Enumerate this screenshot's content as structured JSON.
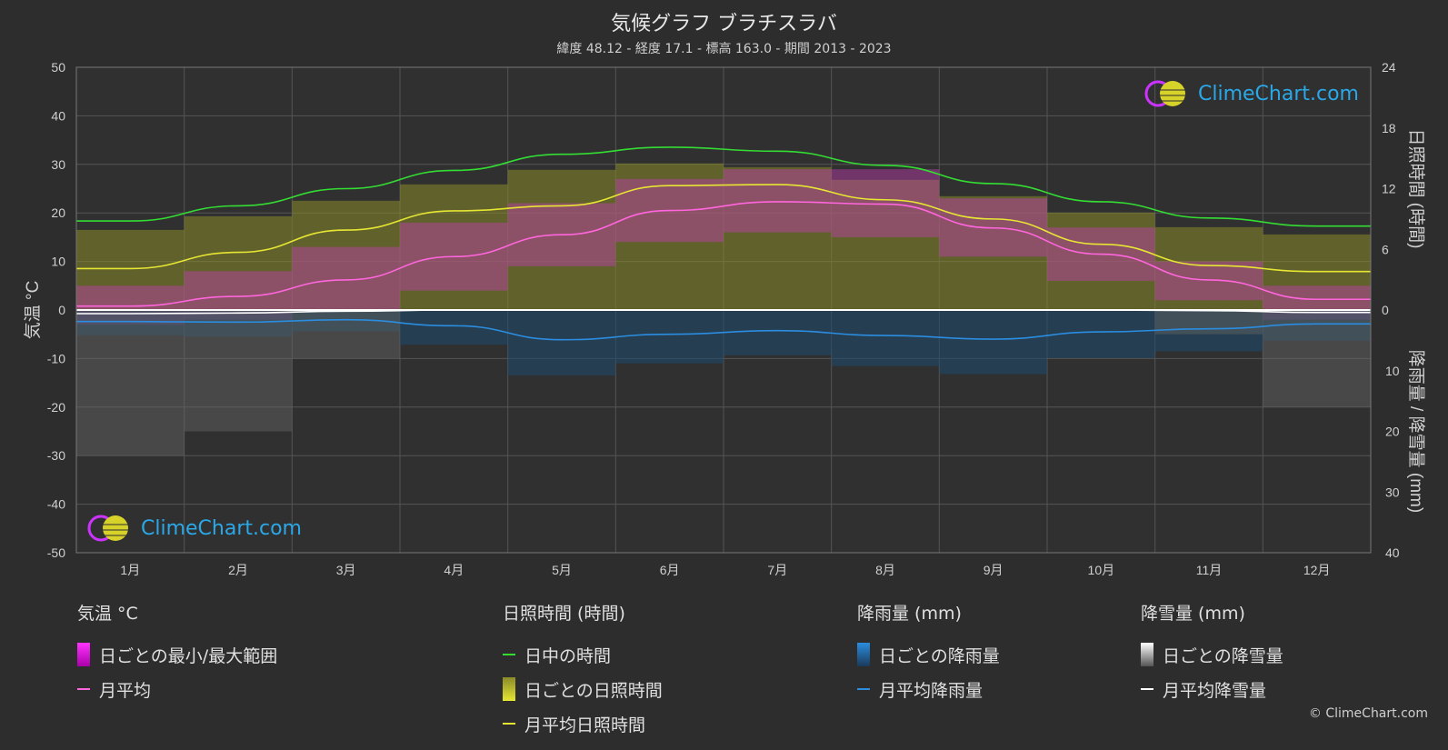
{
  "title": "気候グラフ ブラチスラバ",
  "subtitle": "緯度 48.12 - 経度 17.1 - 標高 163.0 - 期間 2013 - 2023",
  "axes": {
    "left_label": "気温 °C",
    "right_top_label": "日照時間 (時間)",
    "right_bottom_label": "降雨量 / 降雪量 (mm)",
    "left_ticks": [
      "50",
      "40",
      "30",
      "20",
      "10",
      "0",
      "-10",
      "-20",
      "-30",
      "-40",
      "-50"
    ],
    "right_top_ticks": [
      "24",
      "18",
      "12",
      "6",
      "0"
    ],
    "right_bottom_ticks": [
      "10",
      "20",
      "30",
      "40"
    ],
    "months": [
      "1月",
      "2月",
      "3月",
      "4月",
      "5月",
      "6月",
      "7月",
      "8月",
      "9月",
      "10月",
      "11月",
      "12月"
    ]
  },
  "chart_data": {
    "type": "line",
    "x": [
      "1月",
      "2月",
      "3月",
      "4月",
      "5月",
      "6月",
      "7月",
      "8月",
      "9月",
      "10月",
      "11月",
      "12月"
    ],
    "temp_ylim": [
      -50,
      50
    ],
    "sunshine_ylim": [
      0,
      24
    ],
    "precip_ylim": [
      0,
      40
    ],
    "series": [
      {
        "name": "日中の時間",
        "axis": "sunshine",
        "color": "#33dd33",
        "values": [
          8.8,
          10.3,
          12.0,
          13.8,
          15.4,
          16.1,
          15.7,
          14.3,
          12.5,
          10.7,
          9.1,
          8.3
        ]
      },
      {
        "name": "月平均日照時間",
        "axis": "sunshine",
        "color": "#e6e633",
        "values": [
          4.1,
          5.7,
          7.9,
          9.8,
          10.3,
          12.3,
          12.4,
          10.9,
          9.0,
          6.5,
          4.4,
          3.8
        ]
      },
      {
        "name": "月平均",
        "axis": "temp",
        "color": "#ff66dd",
        "values": [
          0.8,
          2.8,
          6.2,
          11.0,
          15.5,
          20.5,
          22.3,
          21.8,
          16.9,
          11.5,
          6.2,
          2.2
        ]
      },
      {
        "name": "月平均降雨量",
        "axis": "precip",
        "color": "#2b8de0",
        "values": [
          1.9,
          2.0,
          1.6,
          2.6,
          4.9,
          4.0,
          3.4,
          4.2,
          4.8,
          3.6,
          3.1,
          2.3
        ]
      },
      {
        "name": "月平均降雪量",
        "axis": "precip",
        "color": "#ffffff",
        "values": [
          0.6,
          0.5,
          0.2,
          0.0,
          0.0,
          0.0,
          0.0,
          0.0,
          0.0,
          0.0,
          0.1,
          0.4
        ]
      }
    ],
    "daily_temp_range": {
      "name": "日ごとの最小/最大範囲",
      "min": [
        -3,
        -2,
        0,
        4,
        9,
        14,
        16,
        15,
        11,
        6,
        2,
        -2
      ],
      "max": [
        5,
        8,
        13,
        18,
        22,
        27,
        29,
        29,
        23,
        17,
        10,
        5
      ]
    }
  },
  "legend": {
    "temp": {
      "title": "気温 °C",
      "items": [
        "日ごとの最小/最大範囲",
        "月平均"
      ]
    },
    "sunshine": {
      "title": "日照時間 (時間)",
      "items": [
        "日中の時間",
        "日ごとの日照時間",
        "月平均日照時間"
      ]
    },
    "rain": {
      "title": "降雨量 (mm)",
      "items": [
        "日ごとの降雨量",
        "月平均降雨量"
      ]
    },
    "snow": {
      "title": "降雪量 (mm)",
      "items": [
        "日ごとの降雪量",
        "月平均降雪量"
      ]
    }
  },
  "logo_text": "ClimeChart.com",
  "copyright": "© ClimeChart.com"
}
